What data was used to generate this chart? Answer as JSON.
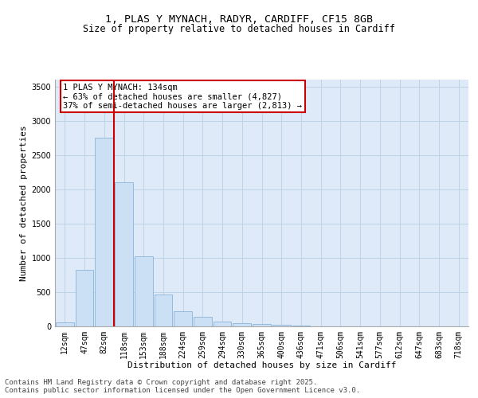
{
  "title_line1": "1, PLAS Y MYNACH, RADYR, CARDIFF, CF15 8GB",
  "title_line2": "Size of property relative to detached houses in Cardiff",
  "xlabel": "Distribution of detached houses by size in Cardiff",
  "ylabel": "Number of detached properties",
  "categories": [
    "12sqm",
    "47sqm",
    "82sqm",
    "118sqm",
    "153sqm",
    "188sqm",
    "224sqm",
    "259sqm",
    "294sqm",
    "330sqm",
    "365sqm",
    "400sqm",
    "436sqm",
    "471sqm",
    "506sqm",
    "541sqm",
    "577sqm",
    "612sqm",
    "647sqm",
    "683sqm",
    "718sqm"
  ],
  "values": [
    55,
    820,
    2750,
    2100,
    1020,
    460,
    215,
    145,
    75,
    45,
    30,
    20,
    10,
    0,
    0,
    0,
    0,
    0,
    0,
    0,
    0
  ],
  "bar_color": "#cce0f5",
  "bar_edge_color": "#8ab4d8",
  "vline_x_index": 3,
  "vline_color": "#cc0000",
  "annotation_line1": "1 PLAS Y MYNACH: 134sqm",
  "annotation_line2": "← 63% of detached houses are smaller (4,827)",
  "annotation_line3": "37% of semi-detached houses are larger (2,813) →",
  "annotation_box_color": "#cc0000",
  "ylim": [
    0,
    3600
  ],
  "yticks": [
    0,
    500,
    1000,
    1500,
    2000,
    2500,
    3000,
    3500
  ],
  "grid_color": "#c0d4e8",
  "background_color": "#deeaf8",
  "footer_line1": "Contains HM Land Registry data © Crown copyright and database right 2025.",
  "footer_line2": "Contains public sector information licensed under the Open Government Licence v3.0.",
  "title_fontsize": 9.5,
  "subtitle_fontsize": 8.5,
  "axis_label_fontsize": 8,
  "tick_fontsize": 7,
  "annotation_fontsize": 7.5,
  "footer_fontsize": 6.5
}
